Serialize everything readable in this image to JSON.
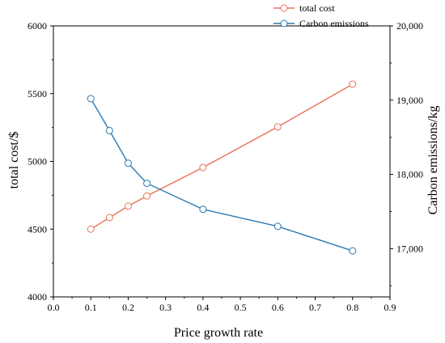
{
  "chart_data": {
    "type": "line",
    "title": "",
    "xlabel": "Price growth rate",
    "ylabel_left": "total cost/$",
    "ylabel_right": "Carbon emissions/kg",
    "xlim": [
      0.0,
      0.9
    ],
    "ylim_left": [
      4000,
      6000
    ],
    "ylim_right": [
      16350,
      20000
    ],
    "x_ticks": [
      0.0,
      0.1,
      0.2,
      0.3,
      0.4,
      0.5,
      0.6,
      0.7,
      0.8,
      0.9
    ],
    "x_tick_labels": [
      "0.0",
      "0.1",
      "0.2",
      "0.3",
      "0.4",
      "0.5",
      "0.6",
      "0.7",
      "0.8",
      "0.9"
    ],
    "y_left_ticks": [
      4000,
      4500,
      5000,
      5500,
      6000
    ],
    "y_left_tick_labels": [
      "4000",
      "4500",
      "5000",
      "5500",
      "6000"
    ],
    "y_right_ticks": [
      17000,
      18000,
      19000,
      20000
    ],
    "y_right_tick_labels": [
      "17,000",
      "18,000",
      "19,000",
      "20,000"
    ],
    "grid": false,
    "legend_position": "top-right",
    "series": [
      {
        "name": "total cost",
        "axis": "left",
        "color": "#e8735a",
        "x": [
          0.1,
          0.15,
          0.2,
          0.25,
          0.4,
          0.6,
          0.8
        ],
        "values": [
          4500,
          4585,
          4670,
          4745,
          4955,
          5255,
          5570
        ]
      },
      {
        "name": "Carbon emissions",
        "axis": "right",
        "color": "#2a7ab0",
        "x": [
          0.1,
          0.15,
          0.2,
          0.25,
          0.4,
          0.6,
          0.8
        ],
        "values": [
          19020,
          18590,
          18150,
          17880,
          17530,
          17300,
          16970
        ]
      }
    ]
  }
}
